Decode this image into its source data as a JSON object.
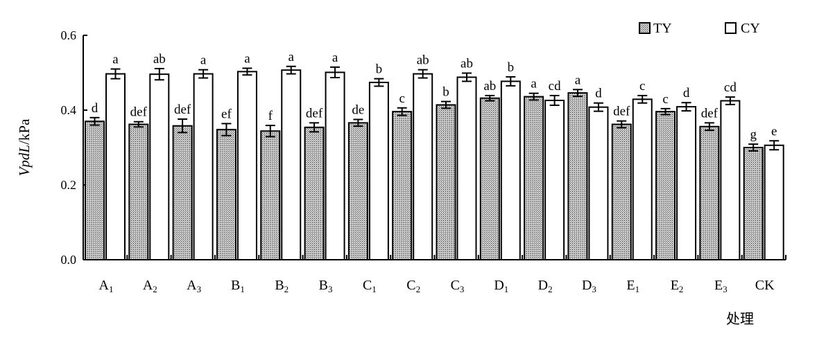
{
  "chart_data": {
    "type": "bar",
    "categories": [
      "A1",
      "A2",
      "A3",
      "B1",
      "B2",
      "B3",
      "C1",
      "C2",
      "C3",
      "D1",
      "D2",
      "D3",
      "E1",
      "E2",
      "E3",
      "CK"
    ],
    "category_labels": [
      {
        "base": "A",
        "sub": "1"
      },
      {
        "base": "A",
        "sub": "2"
      },
      {
        "base": "A",
        "sub": "3"
      },
      {
        "base": "B",
        "sub": "1"
      },
      {
        "base": "B",
        "sub": "2"
      },
      {
        "base": "B",
        "sub": "3"
      },
      {
        "base": "C",
        "sub": "1"
      },
      {
        "base": "C",
        "sub": "2"
      },
      {
        "base": "C",
        "sub": "3"
      },
      {
        "base": "D",
        "sub": "1"
      },
      {
        "base": "D",
        "sub": "2"
      },
      {
        "base": "D",
        "sub": "3"
      },
      {
        "base": "E",
        "sub": "1"
      },
      {
        "base": "E",
        "sub": "2"
      },
      {
        "base": "E",
        "sub": "3"
      },
      {
        "base": "CK",
        "sub": ""
      }
    ],
    "series": [
      {
        "name": "TY",
        "fill": "hatched-gray",
        "values": [
          0.37,
          0.362,
          0.358,
          0.348,
          0.344,
          0.354,
          0.366,
          0.396,
          0.414,
          0.432,
          0.436,
          0.446,
          0.362,
          0.396,
          0.356,
          0.3
        ],
        "errors": [
          0.01,
          0.007,
          0.018,
          0.016,
          0.015,
          0.012,
          0.009,
          0.01,
          0.009,
          0.007,
          0.009,
          0.009,
          0.009,
          0.008,
          0.01,
          0.009
        ],
        "letters": [
          "d",
          "def",
          "def",
          "ef",
          "f",
          "def",
          "de",
          "c",
          "b",
          "ab",
          "a",
          "a",
          "def",
          "c",
          "def",
          "g"
        ]
      },
      {
        "name": "CY",
        "fill": "white",
        "values": [
          0.497,
          0.496,
          0.497,
          0.503,
          0.507,
          0.501,
          0.474,
          0.497,
          0.488,
          0.477,
          0.426,
          0.408,
          0.429,
          0.409,
          0.425,
          0.306
        ],
        "errors": [
          0.013,
          0.015,
          0.011,
          0.009,
          0.01,
          0.014,
          0.01,
          0.011,
          0.011,
          0.012,
          0.013,
          0.011,
          0.01,
          0.011,
          0.01,
          0.012
        ],
        "letters": [
          "a",
          "ab",
          "a",
          "a",
          "a",
          "a",
          "b",
          "ab",
          "ab",
          "b",
          "cd",
          "d",
          "c",
          "d",
          "cd",
          "e"
        ]
      }
    ],
    "ylabel": {
      "italic": "VpdL",
      "unit": "/kPa"
    },
    "xlabel": "处理",
    "ylim": [
      0,
      0.6
    ],
    "yticks": [
      "0.0",
      "0.2",
      "0.4",
      "0.6"
    ],
    "ytick_values": [
      0,
      0.2,
      0.4,
      0.6
    ],
    "legend_position": "top-right",
    "grid": false
  }
}
